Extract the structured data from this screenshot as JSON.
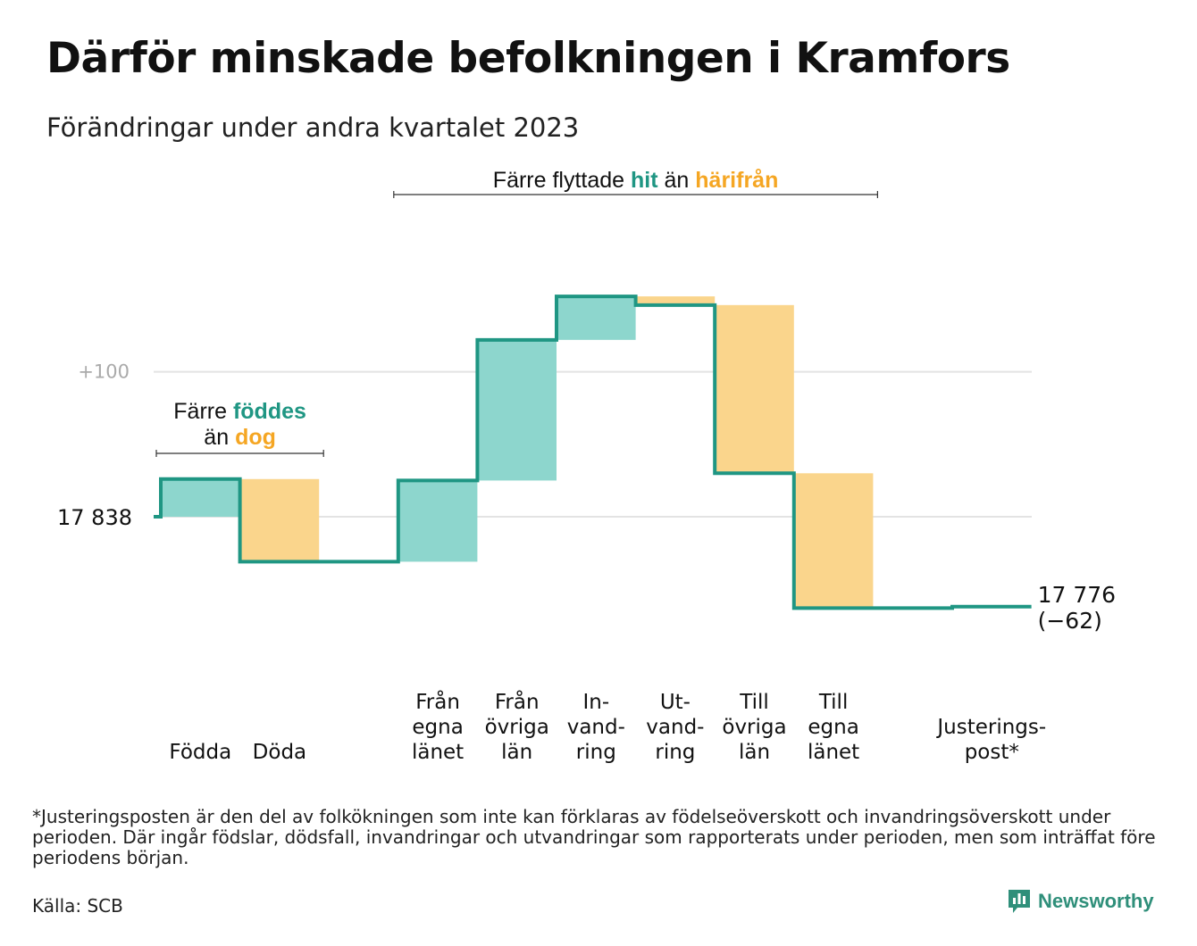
{
  "title": "Därför minskade befolkningen i Kramfors",
  "subtitle": "Förändringar under andra kvartalet 2023",
  "footnote": "*Justeringsposten är den del av folkökningen som inte kan förklaras av födelseöverskott och invandringsöverskott under perioden. Där ingår födslar, dödsfall, invandringar och utvandringar som rapporterats under perioden, men som inträffat före periodens början.",
  "source": "Källa: SCB",
  "brand": {
    "name": "Newsworthy",
    "icon": "newsworthy-logo-icon"
  },
  "colors": {
    "line": "#1f9683",
    "increase": "#8dd6cd",
    "decrease": "#fad58c",
    "grid": "#e3e3e3",
    "hit": "#1f9683",
    "harifran": "#f5a623",
    "axis_label": "#aaaaaa"
  },
  "chart_data": {
    "type": "waterfall",
    "start": {
      "label": "17 838",
      "value": 17838
    },
    "end": {
      "label_value": "17 776",
      "label_change": "(−62)",
      "value": 17776,
      "change": -62
    },
    "ytick": {
      "label": "+100",
      "value": 17938
    },
    "ylim": [
      17734,
      18059
    ],
    "grid": true,
    "steps": [
      {
        "label": [
          "Födda"
        ],
        "delta": 26,
        "group": "increase"
      },
      {
        "label": [
          "Döda"
        ],
        "delta": -57,
        "group": "decrease"
      },
      {
        "label": [],
        "delta": 0,
        "group": "none"
      },
      {
        "label": [
          "Från",
          "egna",
          "länet"
        ],
        "delta": 56,
        "group": "increase"
      },
      {
        "label": [
          "Från",
          "övriga",
          "län"
        ],
        "delta": 97,
        "group": "increase"
      },
      {
        "label": [
          "In-",
          "vand-",
          "ring"
        ],
        "delta": 30,
        "group": "increase"
      },
      {
        "label": [
          "Ut-",
          "vand-",
          "ring"
        ],
        "delta": -6,
        "group": "decrease"
      },
      {
        "label": [
          "Till",
          "övriga",
          "län"
        ],
        "delta": -116,
        "group": "decrease"
      },
      {
        "label": [
          "Till",
          "egna",
          "länet"
        ],
        "delta": -93,
        "group": "decrease"
      },
      {
        "label": [],
        "delta": 0,
        "group": "none"
      },
      {
        "label": [
          "Justerings-",
          "post*"
        ],
        "delta": 1,
        "group": "increase"
      }
    ],
    "annotations": [
      {
        "from_step": 0,
        "to_step": 1,
        "lines": [
          [
            {
              "text": "Färre ",
              "style": "normal"
            },
            {
              "text": "föddes",
              "style": "hit"
            }
          ],
          [
            {
              "text": "än ",
              "style": "normal"
            },
            {
              "text": "dog",
              "style": "harifran"
            }
          ]
        ]
      },
      {
        "from_step": 3,
        "to_step": 8,
        "lines": [
          [
            {
              "text": "Färre flyttade ",
              "style": "normal"
            },
            {
              "text": "hit",
              "style": "hit"
            },
            {
              "text": " än ",
              "style": "normal"
            },
            {
              "text": "härifrån",
              "style": "harifran"
            }
          ]
        ]
      }
    ]
  }
}
